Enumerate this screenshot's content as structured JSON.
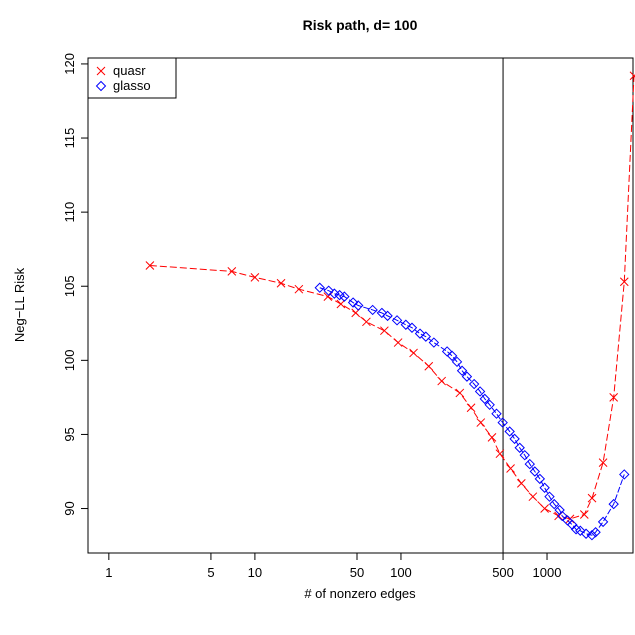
{
  "chart_data": {
    "type": "line",
    "title": "Risk path, d= 100",
    "xlabel": "# of nonzero edges",
    "ylabel": "Neg−LL Risk",
    "xscale": "log",
    "xlim": [
      0.72,
      3940
    ],
    "ylim": [
      87,
      120.4
    ],
    "xticks": [
      1,
      5,
      10,
      50,
      100,
      500,
      1000
    ],
    "yticks": [
      90,
      95,
      100,
      105,
      110,
      115,
      120
    ],
    "vline": 500,
    "legend": "top-left",
    "series": [
      {
        "name": "quasr",
        "color": "#ff0000",
        "marker": "x",
        "x": [
          1.91,
          6.95,
          10,
          15.1,
          20,
          31.6,
          38.8,
          49,
          58,
          77,
          95.6,
          122,
          155,
          190,
          253,
          302,
          352,
          420,
          476,
          563,
          667,
          800,
          963,
          1200,
          1437,
          1800,
          2033,
          2420,
          2860,
          3380,
          3940
        ],
        "values": [
          106.4,
          106.0,
          105.6,
          105.2,
          104.8,
          104.3,
          103.8,
          103.2,
          102.6,
          102.0,
          101.2,
          100.5,
          99.6,
          98.6,
          97.8,
          96.8,
          95.8,
          94.8,
          93.7,
          92.7,
          91.7,
          90.8,
          90.0,
          89.5,
          89.3,
          89.6,
          90.7,
          93.1,
          97.5,
          105.3,
          119.2
        ]
      },
      {
        "name": "glasso",
        "color": "#0000ff",
        "marker": "diamond",
        "x": [
          27.8,
          32,
          35,
          38,
          41,
          47,
          51,
          64,
          74,
          81,
          94,
          108,
          119,
          135,
          148,
          168,
          207,
          224,
          242,
          262,
          283,
          317,
          348,
          375,
          405,
          451,
          497,
          555,
          600,
          650,
          704,
          762,
          825,
          893,
          963,
          1040,
          1120,
          1220,
          1270,
          1380,
          1490,
          1580,
          1690,
          1850,
          2030,
          2150,
          2420,
          2860,
          3380
        ],
        "values": [
          104.9,
          104.7,
          104.5,
          104.4,
          104.3,
          103.9,
          103.7,
          103.4,
          103.2,
          103.0,
          102.7,
          102.4,
          102.2,
          101.8,
          101.6,
          101.2,
          100.6,
          100.3,
          99.9,
          99.3,
          98.9,
          98.4,
          97.9,
          97.4,
          97.0,
          96.4,
          95.8,
          95.2,
          94.7,
          94.1,
          93.6,
          93.0,
          92.5,
          92.0,
          91.4,
          90.8,
          90.3,
          89.9,
          89.5,
          89.2,
          88.9,
          88.6,
          88.5,
          88.3,
          88.2,
          88.4,
          89.1,
          90.3,
          92.3
        ]
      }
    ]
  }
}
